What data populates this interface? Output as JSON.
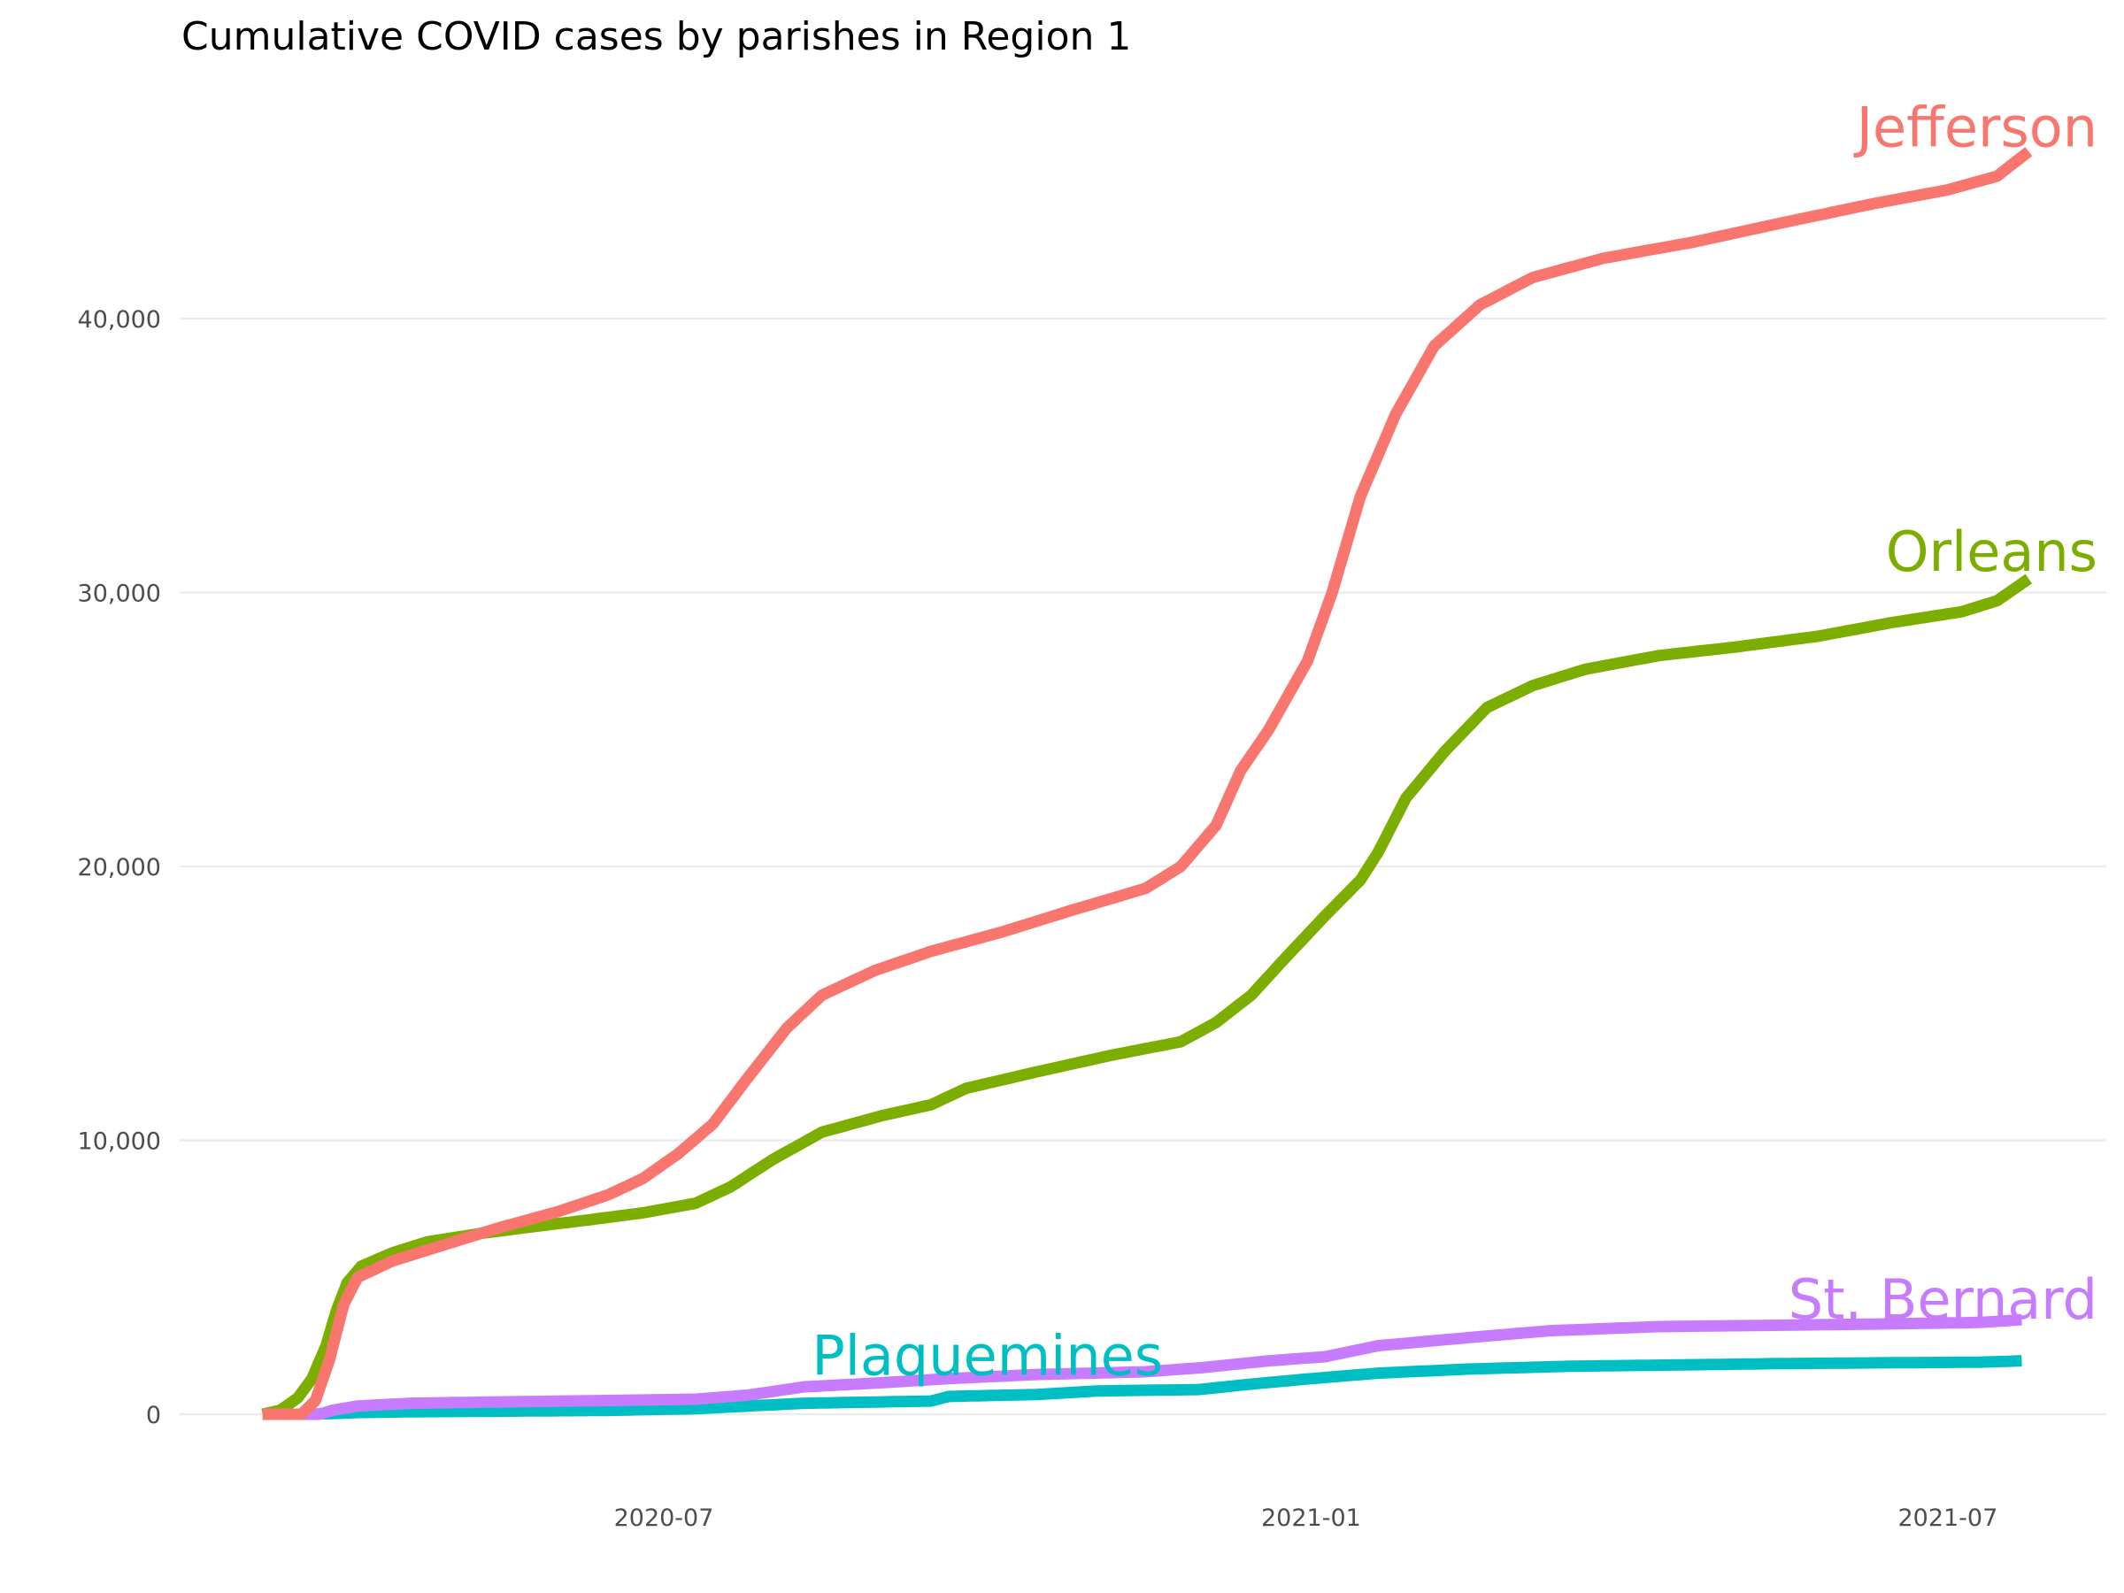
{
  "chart_data": {
    "type": "line",
    "title": "Cumulative COVID cases by parishes in Region 1",
    "xlabel": "",
    "ylabel": "",
    "x_type": "date",
    "xlim": [
      "2020-02-20",
      "2021-08-05"
    ],
    "ylim": [
      -1300,
      48000
    ],
    "grid": true,
    "legend": "direct-labels",
    "x_ticks": [
      {
        "date": "2020-07-01",
        "label": "2020-07"
      },
      {
        "date": "2021-01-01",
        "label": "2021-01"
      },
      {
        "date": "2021-07-01",
        "label": "2021-07"
      }
    ],
    "y_ticks": [
      {
        "value": 0,
        "label": "0"
      },
      {
        "value": 10000,
        "label": "10,000"
      },
      {
        "value": 20000,
        "label": "20,000"
      },
      {
        "value": 30000,
        "label": "30,000"
      },
      {
        "value": 40000,
        "label": "40,000"
      }
    ],
    "series": [
      {
        "name": "Plaquemines",
        "color": "#00BFC4",
        "label": "Plaquemines",
        "label_anchor": {
          "date": "2020-10-01",
          "value": 2150
        },
        "points": [
          [
            "2020-03-09",
            0
          ],
          [
            "2020-03-20",
            0
          ],
          [
            "2020-03-28",
            20
          ],
          [
            "2020-04-05",
            60
          ],
          [
            "2020-04-20",
            90
          ],
          [
            "2020-05-15",
            110
          ],
          [
            "2020-06-15",
            140
          ],
          [
            "2020-07-10",
            200
          ],
          [
            "2020-07-25",
            300
          ],
          [
            "2020-08-10",
            400
          ],
          [
            "2020-09-01",
            450
          ],
          [
            "2020-09-15",
            480
          ],
          [
            "2020-09-20",
            650
          ],
          [
            "2020-10-15",
            720
          ],
          [
            "2020-11-01",
            850
          ],
          [
            "2020-11-30",
            900
          ],
          [
            "2020-12-15",
            1100
          ],
          [
            "2021-01-01",
            1300
          ],
          [
            "2021-01-20",
            1500
          ],
          [
            "2021-02-15",
            1650
          ],
          [
            "2021-03-15",
            1750
          ],
          [
            "2021-04-15",
            1800
          ],
          [
            "2021-05-15",
            1850
          ],
          [
            "2021-06-15",
            1880
          ],
          [
            "2021-07-10",
            1900
          ],
          [
            "2021-07-22",
            1950
          ]
        ]
      },
      {
        "name": "St. Bernard",
        "color": "#C77CFF",
        "label": "St. Bernard",
        "label_anchor": {
          "date": "2021-07-24",
          "value": 4200
        },
        "points": [
          [
            "2020-03-09",
            0
          ],
          [
            "2020-03-25",
            0
          ],
          [
            "2020-03-29",
            150
          ],
          [
            "2020-04-05",
            300
          ],
          [
            "2020-04-20",
            400
          ],
          [
            "2020-05-15",
            450
          ],
          [
            "2020-06-15",
            500
          ],
          [
            "2020-07-10",
            550
          ],
          [
            "2020-07-25",
            700
          ],
          [
            "2020-08-10",
            1000
          ],
          [
            "2020-09-01",
            1150
          ],
          [
            "2020-09-20",
            1300
          ],
          [
            "2020-10-15",
            1450
          ],
          [
            "2020-11-15",
            1550
          ],
          [
            "2020-12-01",
            1700
          ],
          [
            "2020-12-20",
            1950
          ],
          [
            "2021-01-05",
            2100
          ],
          [
            "2021-01-20",
            2500
          ],
          [
            "2021-02-15",
            2800
          ],
          [
            "2021-03-10",
            3050
          ],
          [
            "2021-04-10",
            3200
          ],
          [
            "2021-05-15",
            3250
          ],
          [
            "2021-06-15",
            3300
          ],
          [
            "2021-07-10",
            3350
          ],
          [
            "2021-07-22",
            3450
          ]
        ]
      },
      {
        "name": "Orleans",
        "color": "#7CAE00",
        "label": "Orleans",
        "label_anchor": {
          "date": "2021-07-22",
          "value": 31500
        },
        "points": [
          [
            "2020-03-09",
            0
          ],
          [
            "2020-03-14",
            150
          ],
          [
            "2020-03-19",
            600
          ],
          [
            "2020-03-23",
            1300
          ],
          [
            "2020-03-27",
            2500
          ],
          [
            "2020-03-30",
            3800
          ],
          [
            "2020-04-02",
            4800
          ],
          [
            "2020-04-06",
            5400
          ],
          [
            "2020-04-15",
            5900
          ],
          [
            "2020-04-25",
            6300
          ],
          [
            "2020-05-10",
            6600
          ],
          [
            "2020-05-25",
            6850
          ],
          [
            "2020-06-10",
            7100
          ],
          [
            "2020-06-25",
            7350
          ],
          [
            "2020-07-10",
            7700
          ],
          [
            "2020-07-20",
            8300
          ],
          [
            "2020-08-01",
            9300
          ],
          [
            "2020-08-15",
            10300
          ],
          [
            "2020-09-01",
            10900
          ],
          [
            "2020-09-15",
            11300
          ],
          [
            "2020-09-25",
            11900
          ],
          [
            "2020-10-15",
            12500
          ],
          [
            "2020-11-05",
            13100
          ],
          [
            "2020-11-25",
            13600
          ],
          [
            "2020-12-05",
            14300
          ],
          [
            "2020-12-15",
            15300
          ],
          [
            "2020-12-25",
            16700
          ],
          [
            "2021-01-05",
            18200
          ],
          [
            "2021-01-15",
            19500
          ],
          [
            "2021-01-20",
            20500
          ],
          [
            "2021-01-28",
            22500
          ],
          [
            "2021-02-08",
            24200
          ],
          [
            "2021-02-20",
            25800
          ],
          [
            "2021-03-05",
            26600
          ],
          [
            "2021-03-20",
            27200
          ],
          [
            "2021-04-10",
            27700
          ],
          [
            "2021-05-01",
            28000
          ],
          [
            "2021-05-25",
            28400
          ],
          [
            "2021-06-15",
            28900
          ],
          [
            "2021-07-05",
            29300
          ],
          [
            "2021-07-15",
            29700
          ],
          [
            "2021-07-24",
            30500
          ]
        ]
      },
      {
        "name": "Jefferson",
        "color": "#F8766D",
        "label": "Jefferson",
        "label_anchor": {
          "date": "2021-07-24",
          "value": 47000
        },
        "points": [
          [
            "2020-03-09",
            0
          ],
          [
            "2020-03-20",
            0
          ],
          [
            "2020-03-24",
            500
          ],
          [
            "2020-03-28",
            2000
          ],
          [
            "2020-04-01",
            4000
          ],
          [
            "2020-04-05",
            5000
          ],
          [
            "2020-04-15",
            5600
          ],
          [
            "2020-04-30",
            6200
          ],
          [
            "2020-05-15",
            6800
          ],
          [
            "2020-06-01",
            7400
          ],
          [
            "2020-06-15",
            8000
          ],
          [
            "2020-06-25",
            8600
          ],
          [
            "2020-07-05",
            9500
          ],
          [
            "2020-07-15",
            10600
          ],
          [
            "2020-07-25",
            12300
          ],
          [
            "2020-08-05",
            14100
          ],
          [
            "2020-08-15",
            15300
          ],
          [
            "2020-08-30",
            16200
          ],
          [
            "2020-09-15",
            16900
          ],
          [
            "2020-10-05",
            17600
          ],
          [
            "2020-10-25",
            18400
          ],
          [
            "2020-11-15",
            19200
          ],
          [
            "2020-11-25",
            20000
          ],
          [
            "2020-12-05",
            21500
          ],
          [
            "2020-12-12",
            23500
          ],
          [
            "2020-12-20",
            25000
          ],
          [
            "2020-12-31",
            27500
          ],
          [
            "2021-01-07",
            30000
          ],
          [
            "2021-01-15",
            33500
          ],
          [
            "2021-01-25",
            36500
          ],
          [
            "2021-02-05",
            39000
          ],
          [
            "2021-02-18",
            40500
          ],
          [
            "2021-03-05",
            41500
          ],
          [
            "2021-03-25",
            42200
          ],
          [
            "2021-04-20",
            42800
          ],
          [
            "2021-05-15",
            43500
          ],
          [
            "2021-06-10",
            44200
          ],
          [
            "2021-07-01",
            44700
          ],
          [
            "2021-07-15",
            45200
          ],
          [
            "2021-07-24",
            46100
          ]
        ]
      }
    ]
  }
}
